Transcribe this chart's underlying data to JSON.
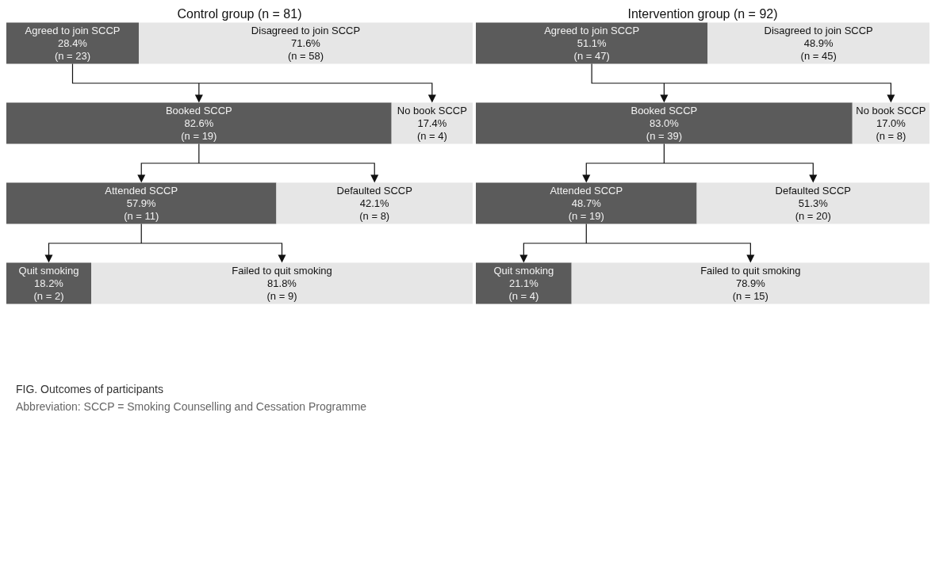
{
  "chart_data": [
    {
      "type": "bar",
      "orientation": "horizontal",
      "stacked": true,
      "title": "Control group (n = 81)",
      "categories": [
        null,
        null,
        null,
        null
      ],
      "xlim": [
        0,
        100
      ],
      "tick_labels": false,
      "series": [
        {
          "color": "#5b5b5b",
          "values": [
            28.4,
            82.6,
            57.9,
            18.2
          ],
          "value_labels": [
            "Agreed to join SCCP\n28.4%\n(n = 23)",
            "Booked SCCP\n82.6%\n(n = 19)",
            "Attended SCCP\n57.9%\n(n = 11)",
            "Quit smoking\n18.2%\n(n = 2)"
          ]
        },
        {
          "color": "#e6e6e6",
          "values": [
            71.6,
            17.4,
            42.1,
            81.8
          ],
          "value_labels": [
            "Disagreed to join SCCP\n71.6%\n(n = 58)",
            "No book SCCP\n17.4%\n(n = 4)",
            "Defaulted SCCP\n42.1%\n(n = 8)",
            "Failed to quit smoking\n81.8%\n(n = 9)"
          ]
        }
      ],
      "annotations": [
        "FIG. Outcomes of participants",
        "Abbreviation: SCCP = Smoking Counselling and Cessation Programme"
      ]
    },
    {
      "type": "bar",
      "orientation": "horizontal",
      "stacked": true,
      "title": "Intervention group (n = 92)",
      "categories": [
        null,
        null,
        null,
        null
      ],
      "xlim": [
        0,
        100
      ],
      "tick_labels": false,
      "series": [
        {
          "color": "#5b5b5b",
          "values": [
            51.1,
            83.0,
            48.7,
            21.1
          ],
          "value_labels": [
            "Agreed to join SCCP\n51.1%\n(n = 47)",
            "Booked SCCP\n83.0%\n(n = 39)",
            "Attended SCCP\n48.7%\n(n = 19)",
            "Quit smoking\n21.1%\n(n = 4)"
          ]
        },
        {
          "color": "#e6e6e6",
          "values": [
            48.9,
            17.0,
            51.3,
            78.9
          ],
          "value_labels": [
            "Disagreed to join SCCP\n48.9%\n(n = 45)",
            "No book SCCP\n17.0%\n(n = 8)",
            "Defaulted SCCP\n51.3%\n(n = 20)",
            "Failed to quit smoking\n78.9%\n(n = 15)"
          ]
        }
      ]
    }
  ]
}
